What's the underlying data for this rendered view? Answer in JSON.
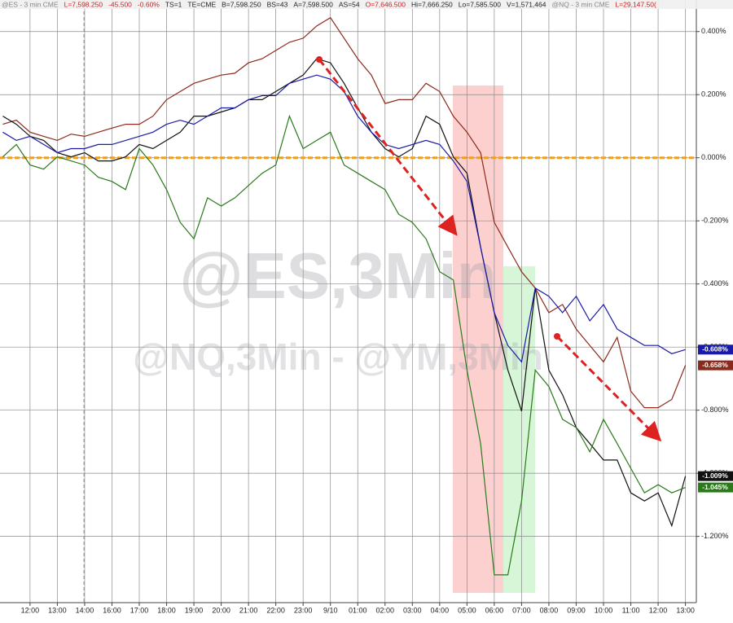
{
  "header": {
    "items": [
      {
        "text": "@ES - 3 min  CME",
        "color": "#888888"
      },
      {
        "text": "L=7,598.250",
        "color": "#cc2222"
      },
      {
        "text": "-45.500",
        "color": "#cc2222"
      },
      {
        "text": "-0.60%",
        "color": "#cc2222"
      },
      {
        "text": "TS=1",
        "color": "#222222"
      },
      {
        "text": "TE=CME",
        "color": "#222222"
      },
      {
        "text": "B=7,598.250",
        "color": "#222222"
      },
      {
        "text": "BS=43",
        "color": "#222222"
      },
      {
        "text": "A=7,598.500",
        "color": "#222222"
      },
      {
        "text": "AS=54",
        "color": "#222222"
      },
      {
        "text": "O=7,646.500",
        "color": "#cc2222"
      },
      {
        "text": "Hi=7,666.250",
        "color": "#222222"
      },
      {
        "text": "Lo=7,585.500",
        "color": "#222222"
      },
      {
        "text": "V=1,571,464",
        "color": "#222222"
      },
      {
        "text": "@NQ - 3 min  CME",
        "color": "#888888"
      },
      {
        "text": "L=29,147.50(",
        "color": "#cc2222"
      }
    ]
  },
  "chart_data": {
    "type": "line",
    "watermarks": [
      "@ES,3Min",
      "@NQ,3Min - @YM,3Min"
    ],
    "x": [
      -1,
      -0.5,
      0,
      0.5,
      1,
      1.5,
      2,
      2.5,
      3,
      3.5,
      4,
      4.5,
      5,
      5.5,
      6,
      6.5,
      7,
      7.5,
      8,
      8.5,
      9,
      9.5,
      10,
      10.5,
      11,
      11.5,
      12,
      12.5,
      13,
      13.5,
      14,
      14.5,
      15,
      15.5,
      16,
      16.5,
      17,
      17.5,
      18,
      18.5,
      19,
      19.5,
      20,
      20.5,
      21,
      21.5,
      22,
      22.5,
      23,
      23.5,
      24
    ],
    "xlim": [
      -1.1,
      24.4
    ],
    "xticks": [
      {
        "value": 0,
        "label": "12:00"
      },
      {
        "value": 1,
        "label": "13:00"
      },
      {
        "value": 2,
        "label": "14:00"
      },
      {
        "value": 3,
        "label": "16:00"
      },
      {
        "value": 4,
        "label": "17:00"
      },
      {
        "value": 5,
        "label": "18:00"
      },
      {
        "value": 6,
        "label": "19:00"
      },
      {
        "value": 7,
        "label": "20:00"
      },
      {
        "value": 8,
        "label": "21:00"
      },
      {
        "value": 9,
        "label": "22:00"
      },
      {
        "value": 10,
        "label": "23:00"
      },
      {
        "value": 11,
        "label": "9/10"
      },
      {
        "value": 12,
        "label": "01:00"
      },
      {
        "value": 13,
        "label": "02:00"
      },
      {
        "value": 14,
        "label": "03:00"
      },
      {
        "value": 15,
        "label": "04:00"
      },
      {
        "value": 16,
        "label": "05:00"
      },
      {
        "value": 17,
        "label": "06:00"
      },
      {
        "value": 18,
        "label": "07:00"
      },
      {
        "value": 19,
        "label": "08:00"
      },
      {
        "value": 20,
        "label": "09:00"
      },
      {
        "value": 21,
        "label": "10:00"
      },
      {
        "value": 22,
        "label": "11:00"
      },
      {
        "value": 23,
        "label": "12:00"
      },
      {
        "value": 24,
        "label": "13:00"
      }
    ],
    "ylim": [
      -1.41,
      0.5
    ],
    "yticks": [
      {
        "value": 0.4,
        "label": "0.400%"
      },
      {
        "value": 0.2,
        "label": "0.200%"
      },
      {
        "value": 0,
        "label": "0.000%"
      },
      {
        "value": -0.2,
        "label": "-0.200%"
      },
      {
        "value": -0.4,
        "label": "-0.400%"
      },
      {
        "value": -0.6,
        "label": "-0.600%"
      },
      {
        "value": -0.8,
        "label": "-0.800%"
      },
      {
        "value": -1.0,
        "label": "-1.000%"
      },
      {
        "value": -1.2,
        "label": "-1.200%"
      }
    ],
    "grid": true,
    "zero_line_color": "#f0a020",
    "series": [
      {
        "color": "#8b2a1a",
        "end_label": "-0.658%",
        "values": [
          0.106,
          0.119,
          0.081,
          0.068,
          0.055,
          0.075,
          0.068,
          0.081,
          0.094,
          0.106,
          0.106,
          0.132,
          0.184,
          0.21,
          0.236,
          0.249,
          0.262,
          0.268,
          0.301,
          0.314,
          0.34,
          0.366,
          0.379,
          0.418,
          0.444,
          0.379,
          0.314,
          0.262,
          0.172,
          0.184,
          0.184,
          0.236,
          0.21,
          0.132,
          0.081,
          0.016,
          -0.205,
          -0.283,
          -0.361,
          -0.413,
          -0.491,
          -0.465,
          -0.543,
          -0.595,
          -0.647,
          -0.569,
          -0.74,
          -0.792,
          -0.792,
          -0.766,
          -0.658
        ]
      },
      {
        "color": "#111111",
        "end_label": "-1.009%",
        "values": [
          0.132,
          0.106,
          0.068,
          0.055,
          0.016,
          0.003,
          0.016,
          -0.01,
          -0.01,
          0.003,
          0.042,
          0.029,
          0.055,
          0.081,
          0.132,
          0.132,
          0.145,
          0.158,
          0.184,
          0.184,
          0.21,
          0.236,
          0.262,
          0.314,
          0.301,
          0.236,
          0.158,
          0.081,
          0.029,
          0.003,
          0.029,
          0.132,
          0.106,
          0.003,
          -0.049,
          -0.283,
          -0.491,
          -0.673,
          -0.803,
          -0.413,
          -0.673,
          -0.751,
          -0.855,
          -0.906,
          -0.958,
          -0.958,
          -1.062,
          -1.088,
          -1.062,
          -1.166,
          -1.009
        ]
      },
      {
        "color": "#1a1aa8",
        "end_label": "-0.608%",
        "values": [
          0.081,
          0.055,
          0.068,
          0.042,
          0.016,
          0.029,
          0.029,
          0.042,
          0.042,
          0.055,
          0.068,
          0.081,
          0.106,
          0.119,
          0.106,
          0.132,
          0.158,
          0.158,
          0.184,
          0.197,
          0.197,
          0.236,
          0.249,
          0.262,
          0.249,
          0.21,
          0.132,
          0.081,
          0.042,
          0.029,
          0.042,
          0.055,
          0.042,
          -0.01,
          -0.075,
          -0.283,
          -0.491,
          -0.595,
          -0.647,
          -0.413,
          -0.439,
          -0.491,
          -0.439,
          -0.517,
          -0.465,
          -0.543,
          -0.569,
          -0.595,
          -0.595,
          -0.621,
          -0.608
        ]
      },
      {
        "color": "#2a7a1a",
        "end_label": "-1.045%",
        "values": [
          0.003,
          0.042,
          -0.023,
          -0.036,
          0.003,
          -0.01,
          -0.023,
          -0.062,
          -0.075,
          -0.101,
          0.029,
          -0.023,
          -0.101,
          -0.205,
          -0.257,
          -0.127,
          -0.153,
          -0.127,
          -0.088,
          -0.049,
          -0.023,
          0.132,
          0.029,
          0.055,
          0.081,
          -0.023,
          -0.049,
          -0.075,
          -0.101,
          -0.179,
          -0.205,
          -0.257,
          -0.361,
          -0.387,
          -0.673,
          -0.906,
          -1.322,
          -1.322,
          -1.088,
          -0.673,
          -0.725,
          -0.829,
          -0.855,
          -0.932,
          -0.829,
          -0.906,
          -0.984,
          -1.062,
          -1.036,
          -1.062,
          -1.045
        ]
      }
    ]
  }
}
